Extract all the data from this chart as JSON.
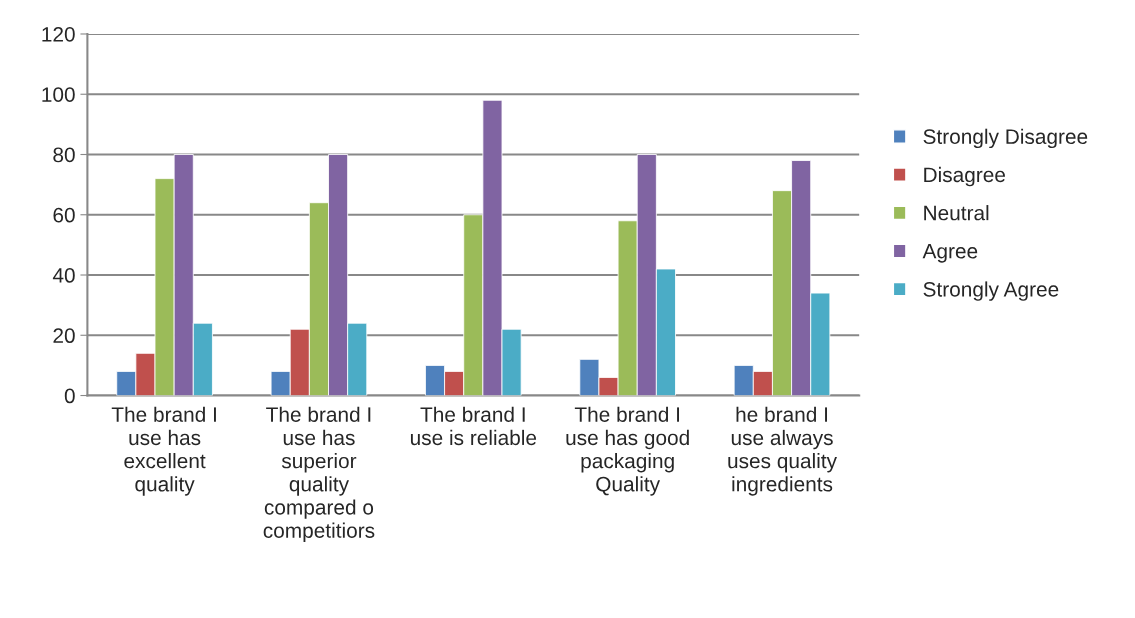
{
  "chart_data": {
    "type": "bar",
    "categories": [
      "The brand I\nuse has\nexcellent\nquality",
      "The brand I\nuse has\nsuperior\nquality\ncompared o\ncompetitiors",
      "The brand I\nuse is reliable",
      "The brand I\nuse has good\npackaging\nQuality",
      "he brand I\nuse always\nuses quality\ningredients"
    ],
    "series": [
      {
        "name": "Strongly Disagree",
        "color": "#4f81bd",
        "values": [
          8,
          8,
          10,
          12,
          10
        ]
      },
      {
        "name": "Disagree",
        "color": "#c0504d",
        "values": [
          14,
          22,
          8,
          6,
          8
        ]
      },
      {
        "name": "Neutral",
        "color": "#9bbb59",
        "values": [
          72,
          64,
          60,
          58,
          68
        ]
      },
      {
        "name": "Agree",
        "color": "#8064a2",
        "values": [
          80,
          80,
          98,
          80,
          78
        ]
      },
      {
        "name": "Strongly Agree",
        "color": "#4bacc6",
        "values": [
          24,
          24,
          22,
          42,
          34
        ]
      }
    ],
    "ylim": [
      0,
      120
    ],
    "yticks": [
      0,
      20,
      40,
      60,
      80,
      100,
      120
    ],
    "grid": "y",
    "legend": "right"
  }
}
